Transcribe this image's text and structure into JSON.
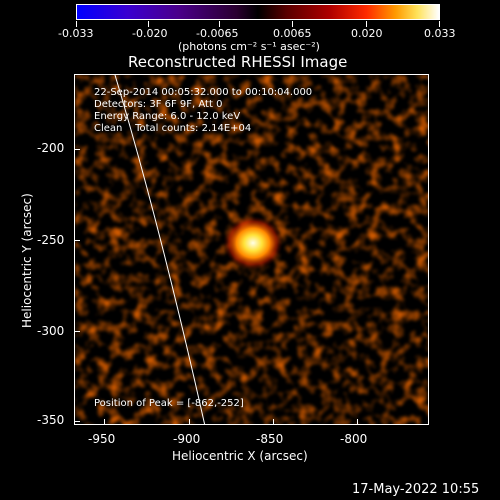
{
  "colorbar": {
    "ticks": [
      "-0.033",
      "-0.020",
      "-0.0065",
      "0.0065",
      "0.020",
      "0.033"
    ],
    "units": "(photons cm⁻² s⁻¹ asec⁻²)"
  },
  "plot": {
    "title": "Reconstructed RHESSI Image",
    "info": {
      "line1": "22-Sep-2014 00:05:32.000 to 00:10:04.000",
      "line2": "Detectors: 3F 6F 9F, Att 0",
      "line3": "Energy Range: 6.0 - 12.0 keV",
      "line4": "Clean    Total counts: 2.14E+04"
    },
    "peak_label": "Position of Peak = [-862,-252]",
    "xlabel": "Heliocentric X (arcsec)",
    "ylabel": "Heliocentric Y (arcsec)",
    "xticks": [
      "-950",
      "-900",
      "-850",
      "-800"
    ],
    "yticks": [
      "-200",
      "-250",
      "-300",
      "-350"
    ],
    "colors": {
      "background": "#000000",
      "source_core": "#ffffe0",
      "source_mid": "#ff9a00",
      "noise": "#8a1a00",
      "limb": "#ffffff"
    }
  },
  "timestamp": "17-May-2022 10:55"
}
